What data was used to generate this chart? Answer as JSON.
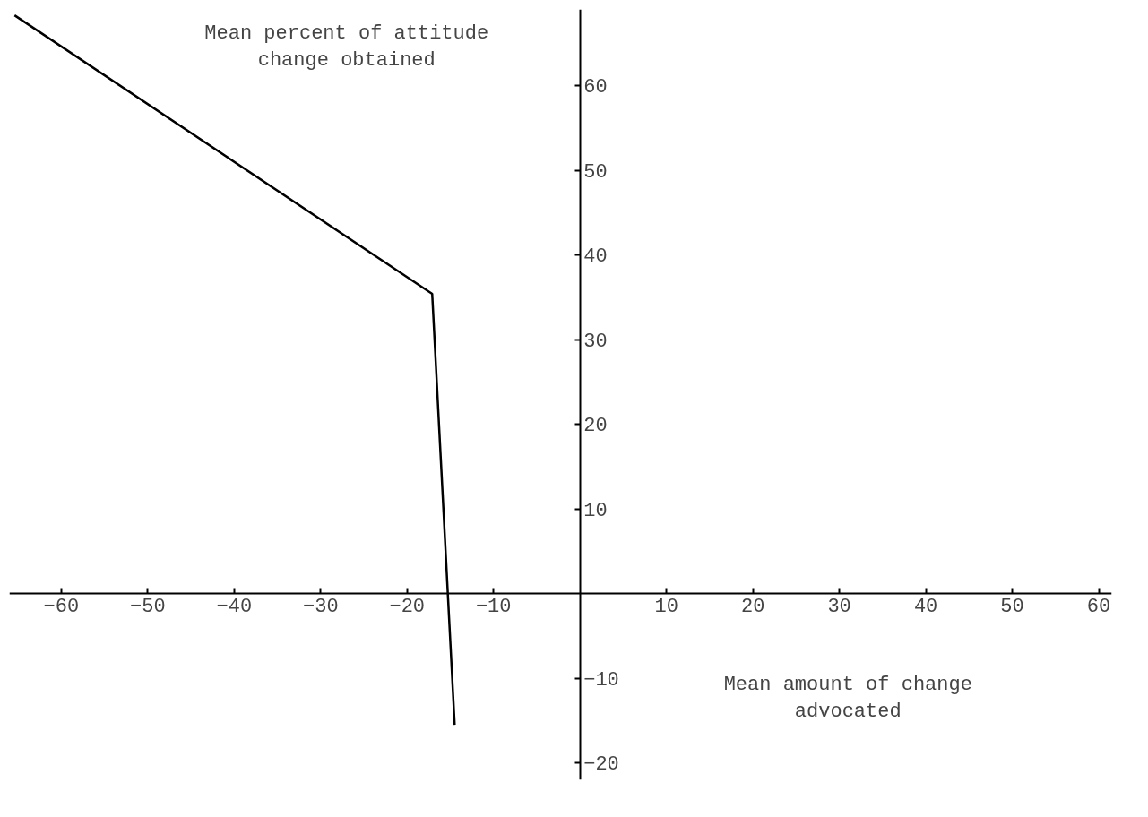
{
  "chart_data": {
    "type": "line",
    "xlabel": "Mean amount of change advocated",
    "ylabel": "Mean percent of attitude change obtained",
    "x": [
      -65.4,
      -17.1,
      -14.5
    ],
    "series": [
      {
        "color": "#000000",
        "values": [
          68.3,
          35.4,
          -15.5
        ]
      }
    ],
    "xlim": [
      -66,
      61.5
    ],
    "ylim": [
      -22,
      69
    ],
    "xticks": [
      -60,
      -50,
      -40,
      -30,
      -20,
      -10,
      10,
      20,
      30,
      40,
      50,
      60
    ],
    "yticks": [
      -20,
      -10,
      10,
      20,
      30,
      40,
      50,
      60
    ],
    "grid": false,
    "marker": "none",
    "line_style": "solid"
  }
}
